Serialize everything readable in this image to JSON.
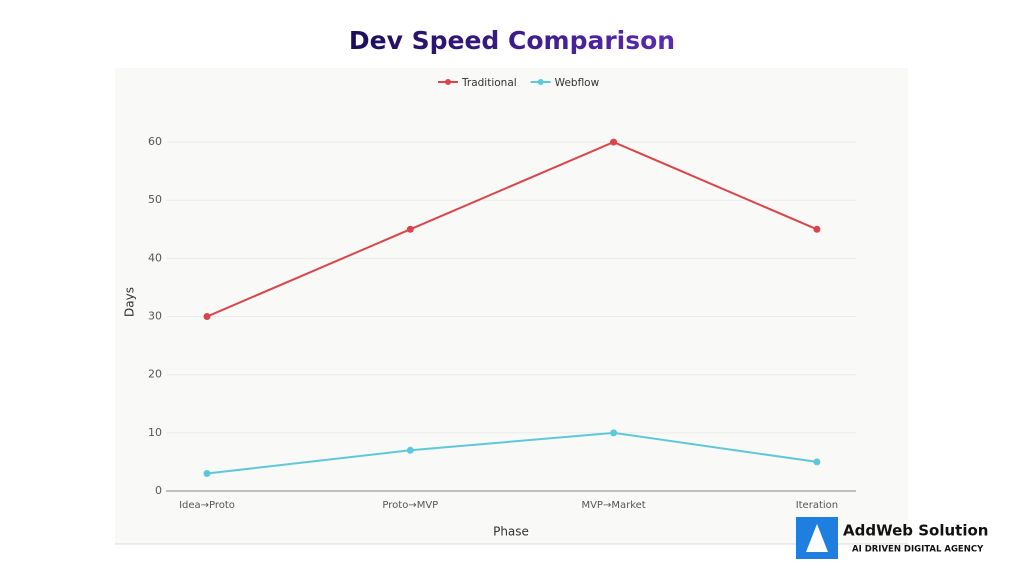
{
  "chart_data": {
    "type": "line",
    "title": "Dev Speed Comparison",
    "categories": [
      "Idea→Proto",
      "Proto→MVP",
      "MVP→Market",
      "Iteration"
    ],
    "series": [
      {
        "name": "Traditional",
        "color": "#d9454a",
        "values": [
          30,
          45,
          60,
          45
        ]
      },
      {
        "name": "Webflow",
        "color": "#5ec8db",
        "values": [
          3,
          7,
          10,
          5
        ]
      }
    ],
    "x_label": "Phase",
    "y_label": "Days",
    "ylim": [
      0,
      65
    ],
    "yticks": [
      0,
      10,
      20,
      30,
      40,
      50,
      60
    ],
    "grid": true,
    "legend": "top"
  },
  "branding": {
    "name": "AddWeb Solution",
    "tagline": "AI DRIVEN DIGITAL AGENCY"
  }
}
